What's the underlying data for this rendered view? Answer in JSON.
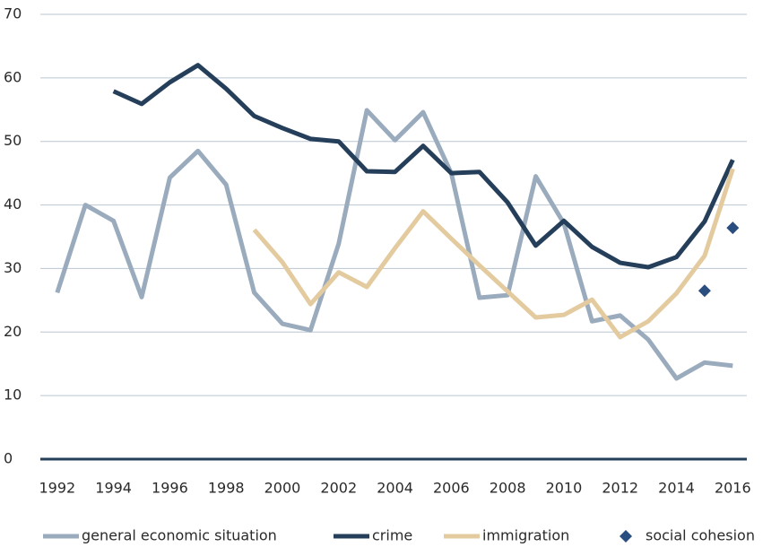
{
  "chart_data": {
    "type": "line",
    "x": [
      1992,
      1993,
      1994,
      1995,
      1996,
      1997,
      1998,
      1999,
      2000,
      2001,
      2002,
      2003,
      2004,
      2005,
      2006,
      2007,
      2008,
      2009,
      2010,
      2011,
      2012,
      2013,
      2014,
      2015,
      2016
    ],
    "xlim": [
      1991.4,
      2016.5
    ],
    "xticks": [
      1992,
      1994,
      1996,
      1998,
      2000,
      2002,
      2004,
      2006,
      2008,
      2010,
      2012,
      2014,
      2016
    ],
    "ylim": [
      0,
      70
    ],
    "yticks": [
      0,
      10,
      20,
      30,
      40,
      50,
      60,
      70
    ],
    "grid": true,
    "legend": "bottom",
    "series": [
      {
        "name": "general economic situation",
        "color": "#9aabbd",
        "style": "line",
        "values": [
          26.2,
          40,
          37.5,
          25.5,
          44.3,
          48.5,
          43.2,
          26.2,
          21.3,
          20.3,
          33.9,
          54.9,
          50.2,
          54.6,
          45,
          25.4,
          25.8,
          44.5,
          37.1,
          21.7,
          22.6,
          18.8,
          12.7,
          15.2,
          14.7
        ]
      },
      {
        "name": "crime",
        "color": "#253f5b",
        "style": "line",
        "values": [
          null,
          null,
          57.9,
          55.9,
          59.3,
          62,
          58.3,
          54,
          52.1,
          50.4,
          50,
          45.3,
          45.2,
          49.3,
          45,
          45.2,
          40.4,
          33.6,
          37.5,
          33.4,
          30.9,
          30.2,
          31.8,
          37.4,
          47.1
        ]
      },
      {
        "name": "immigration",
        "color": "#e3cb9f",
        "style": "line",
        "values": [
          null,
          null,
          null,
          null,
          null,
          null,
          null,
          36.1,
          31,
          24.4,
          29.4,
          27.1,
          33.2,
          39,
          34.7,
          30.5,
          26.4,
          22.3,
          22.7,
          25.1,
          19.2,
          21.7,
          26.1,
          32,
          45.7
        ]
      },
      {
        "name": "social cohesion",
        "color": "#2b4e80",
        "style": "marker",
        "values": [
          null,
          null,
          null,
          null,
          null,
          null,
          null,
          null,
          null,
          null,
          null,
          null,
          null,
          null,
          null,
          null,
          null,
          null,
          null,
          null,
          null,
          null,
          null,
          26.5,
          36.4
        ]
      }
    ]
  }
}
